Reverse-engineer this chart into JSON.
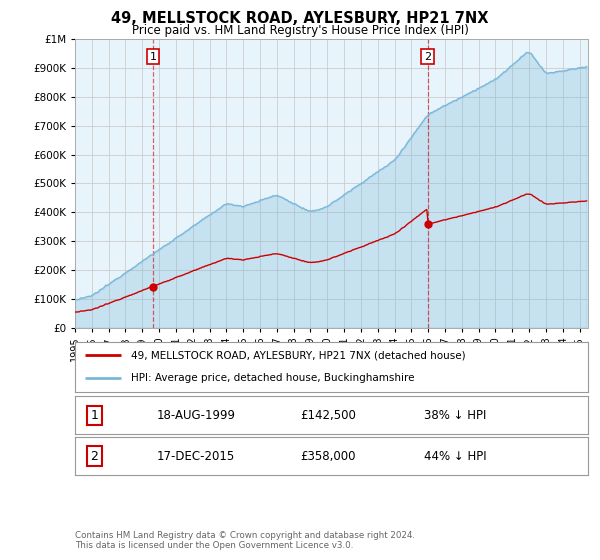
{
  "title": "49, MELLSTOCK ROAD, AYLESBURY, HP21 7NX",
  "subtitle": "Price paid vs. HM Land Registry's House Price Index (HPI)",
  "legend_line1": "49, MELLSTOCK ROAD, AYLESBURY, HP21 7NX (detached house)",
  "legend_line2": "HPI: Average price, detached house, Buckinghamshire",
  "footnote": "Contains HM Land Registry data © Crown copyright and database right 2024.\nThis data is licensed under the Open Government Licence v3.0.",
  "marker1_date": "18-AUG-1999",
  "marker1_price": 142500,
  "marker1_label": "38% ↓ HPI",
  "marker1_year": 1999.63,
  "marker2_date": "17-DEC-2015",
  "marker2_price": 358000,
  "marker2_label": "44% ↓ HPI",
  "marker2_year": 2015.96,
  "hpi_color": "#7ab8d9",
  "hpi_fill": "#ddeef7",
  "price_color": "#cc0000",
  "dashed_color": "#cc0000",
  "ylim_max": 1000000,
  "ylim_min": 0,
  "xlim_min": 1995,
  "xlim_max": 2025.5,
  "bg_color": "#e8f4fb"
}
